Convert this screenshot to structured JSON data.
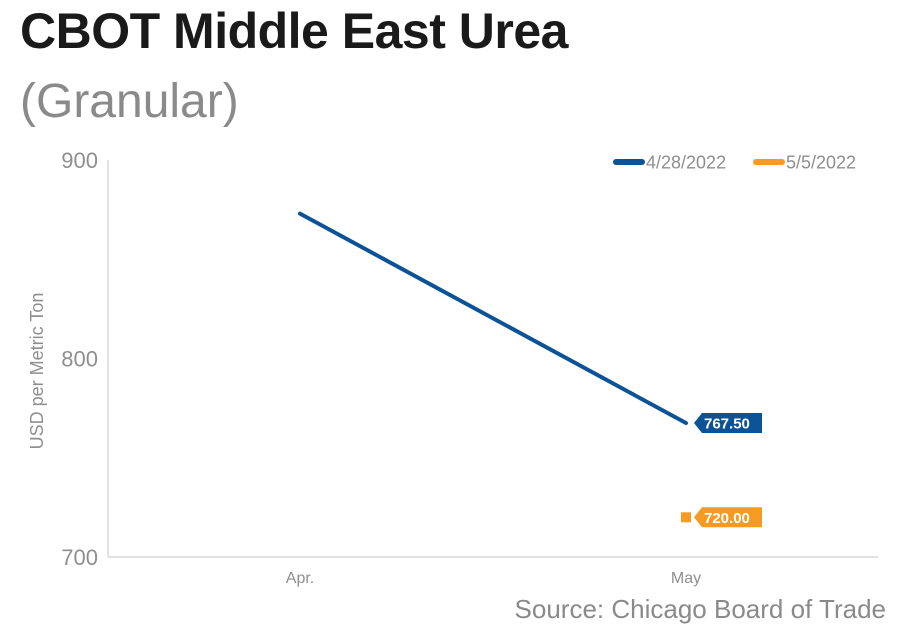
{
  "chart_data": {
    "type": "line",
    "title": "CBOT Middle East Urea",
    "subtitle": "(Granular)",
    "ylabel": "USD per Metric Ton",
    "xlabel": "",
    "categories": [
      "Apr.",
      "May"
    ],
    "ylim": [
      700,
      900
    ],
    "yticks": [
      700,
      800,
      900
    ],
    "grid": false,
    "legend_position": "top-right",
    "series": [
      {
        "name": "4/28/2022",
        "color": "#0b5396",
        "values": [
          873,
          767.5
        ],
        "end_label": "767.50"
      },
      {
        "name": "5/5/2022",
        "color": "#f59a23",
        "values": [
          null,
          720.0
        ],
        "end_label": "720.00"
      }
    ]
  },
  "source": "Source: Chicago Board of Trade"
}
